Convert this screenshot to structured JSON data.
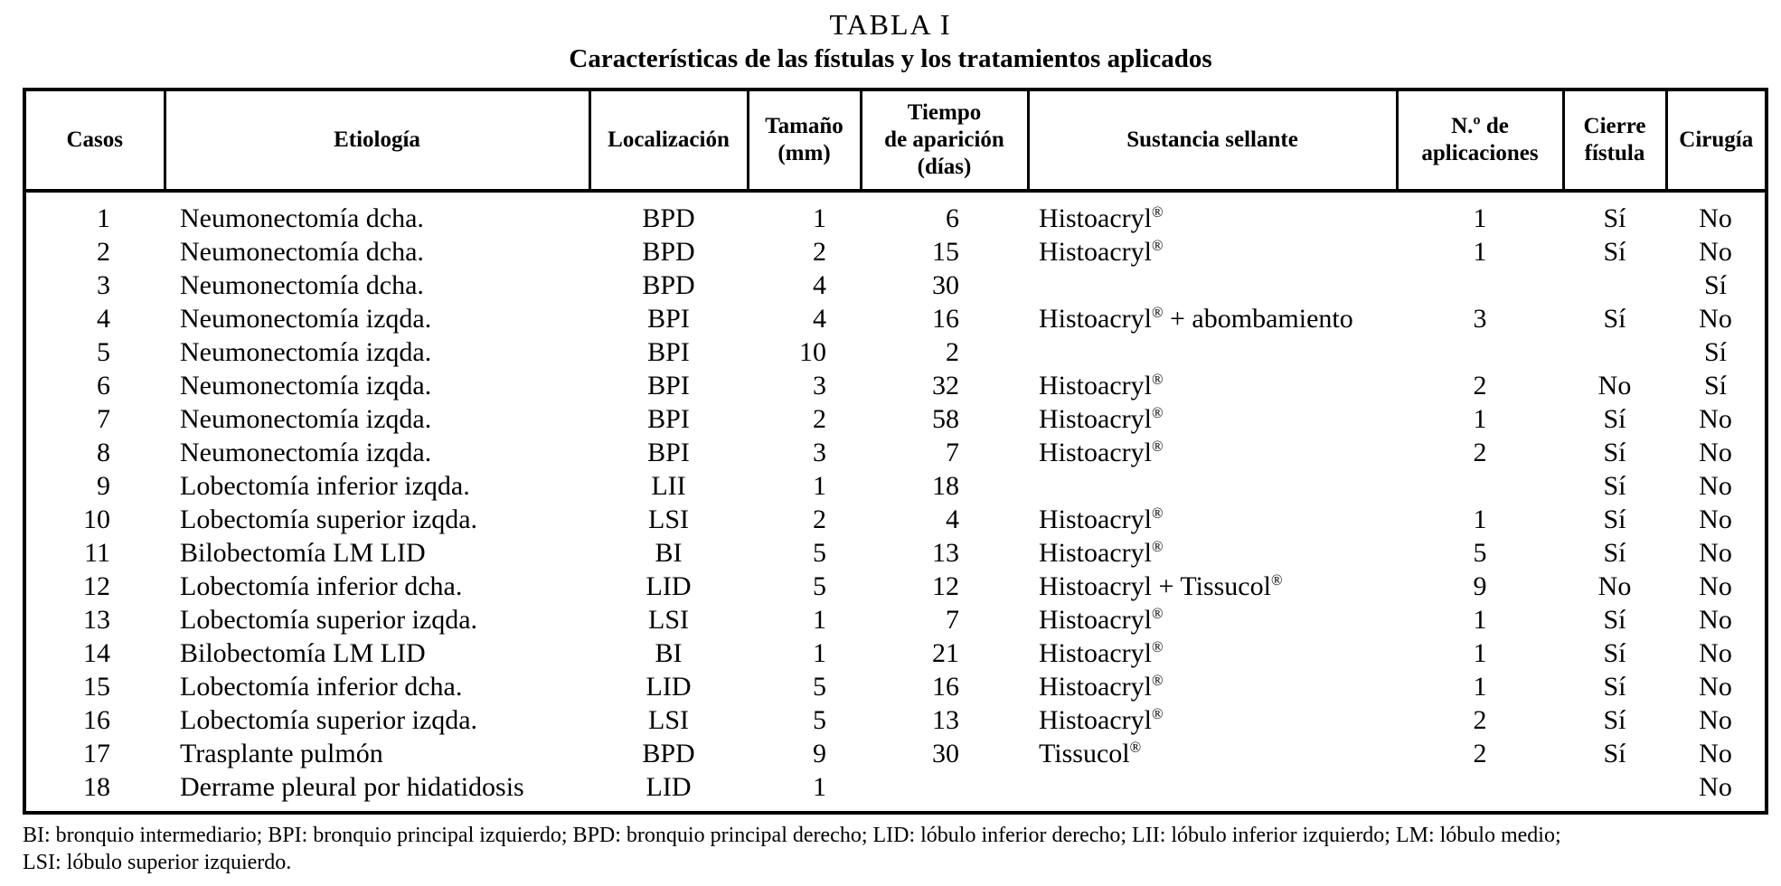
{
  "page": {
    "title": "TABLA I",
    "subtitle": "Características de las fístulas y los tratamientos aplicados"
  },
  "table": {
    "headers": [
      {
        "key": "casos",
        "lines": [
          "Casos"
        ]
      },
      {
        "key": "etiologia",
        "lines": [
          "Etiología"
        ]
      },
      {
        "key": "localizacion",
        "lines": [
          "Localización"
        ]
      },
      {
        "key": "tamano",
        "lines": [
          "Tamaño",
          "(mm)"
        ]
      },
      {
        "key": "tiempo",
        "lines": [
          "Tiempo",
          "de aparición",
          "(días)"
        ]
      },
      {
        "key": "sellante",
        "lines": [
          "Sustancia sellante"
        ]
      },
      {
        "key": "aplicaciones",
        "lines": [
          "N.º de",
          "aplicaciones"
        ]
      },
      {
        "key": "cierre",
        "lines": [
          "Cierre",
          "fístula"
        ]
      },
      {
        "key": "cirugia",
        "lines": [
          "Cirugía"
        ]
      }
    ],
    "rows": [
      [
        "1",
        "Neumonectomía dcha.",
        "BPD",
        "1",
        "6",
        "Histoacryl®",
        "1",
        "Sí",
        "No"
      ],
      [
        "2",
        "Neumonectomía dcha.",
        "BPD",
        "2",
        "15",
        "Histoacryl®",
        "1",
        "Sí",
        "No"
      ],
      [
        "3",
        "Neumonectomía dcha.",
        "BPD",
        "4",
        "30",
        "",
        "",
        "",
        "Sí"
      ],
      [
        "4",
        "Neumonectomía izqda.",
        "BPI",
        "4",
        "16",
        "Histoacryl® + abombamiento",
        "3",
        "Sí",
        "No"
      ],
      [
        "5",
        "Neumonectomía izqda.",
        "BPI",
        "10",
        "2",
        "",
        "",
        "",
        "Sí"
      ],
      [
        "6",
        "Neumonectomía izqda.",
        "BPI",
        "3",
        "32",
        "Histoacryl®",
        "2",
        "No",
        "Sí"
      ],
      [
        "7",
        "Neumonectomía izqda.",
        "BPI",
        "2",
        "58",
        "Histoacryl®",
        "1",
        "Sí",
        "No"
      ],
      [
        "8",
        "Neumonectomía izqda.",
        "BPI",
        "3",
        "7",
        "Histoacryl®",
        "2",
        "Sí",
        "No"
      ],
      [
        "9",
        "Lobectomía inferior izqda.",
        "LII",
        "1",
        "18",
        "",
        "",
        "Sí",
        "No"
      ],
      [
        "10",
        "Lobectomía superior izqda.",
        "LSI",
        "2",
        "4",
        "Histoacryl®",
        "1",
        "Sí",
        "No"
      ],
      [
        "11",
        "Bilobectomía LM LID",
        "BI",
        "5",
        "13",
        "Histoacryl®",
        "5",
        "Sí",
        "No"
      ],
      [
        "12",
        "Lobectomía inferior dcha.",
        "LID",
        "5",
        "12",
        "Histoacryl + Tissucol®",
        "9",
        "No",
        "No"
      ],
      [
        "13",
        "Lobectomía superior izqda.",
        "LSI",
        "1",
        "7",
        "Histoacryl®",
        "1",
        "Sí",
        "No"
      ],
      [
        "14",
        "Bilobectomía LM LID",
        "BI",
        "1",
        "21",
        "Histoacryl®",
        "1",
        "Sí",
        "No"
      ],
      [
        "15",
        "Lobectomía inferior dcha.",
        "LID",
        "5",
        "16",
        "Histoacryl®",
        "1",
        "Sí",
        "No"
      ],
      [
        "16",
        "Lobectomía superior izqda.",
        "LSI",
        "5",
        "13",
        "Histoacryl®",
        "2",
        "Sí",
        "No"
      ],
      [
        "17",
        "Trasplante pulmón",
        "BPD",
        "9",
        "30",
        "Tissucol®",
        "2",
        "Sí",
        "No"
      ],
      [
        "18",
        "Derrame pleural por hidatidosis",
        "LID",
        "1",
        "",
        "",
        "",
        "",
        "No"
      ]
    ]
  },
  "footnotes": {
    "line1": "BI: bronquio intermediario; BPI: bronquio principal izquierdo; BPD: bronquio principal derecho; LID: lóbulo inferior derecho;  LII: lóbulo inferior izquierdo; LM: lóbulo medio;",
    "line2": "LSI: lóbulo superior izquierdo."
  }
}
